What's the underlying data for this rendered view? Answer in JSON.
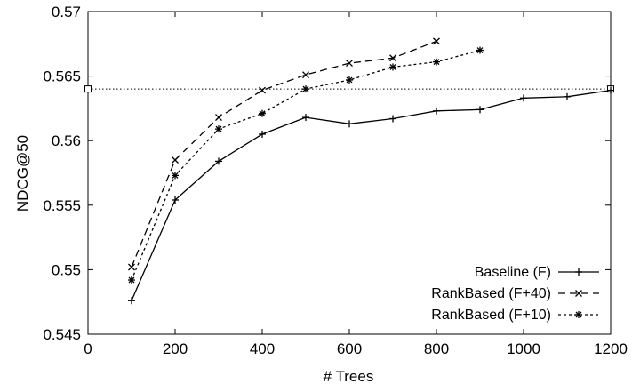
{
  "chart_data": {
    "type": "line",
    "title": "",
    "xlabel": "# Trees",
    "ylabel": "NDCG@50",
    "xlim": [
      0,
      1200
    ],
    "ylim": [
      0.545,
      0.57
    ],
    "xticks": [
      0,
      200,
      400,
      600,
      800,
      1000,
      1200
    ],
    "yticks": [
      0.545,
      0.55,
      0.555,
      0.56,
      0.565,
      0.57
    ],
    "xtick_labels": [
      "0",
      "200",
      "400",
      "600",
      "800",
      "1000",
      "1200"
    ],
    "ytick_labels": [
      "0.545",
      "0.55",
      "0.555",
      "0.56",
      "0.565",
      "0.57"
    ],
    "grid": false,
    "legend_position": "bottom-right",
    "reference_line": {
      "y": 0.564,
      "x_range": [
        0,
        1200
      ],
      "style": "dotted",
      "marker": "square"
    },
    "series": [
      {
        "name": "Baseline (F)",
        "style": "solid",
        "marker": "plus",
        "color": "#000000",
        "x": [
          100,
          200,
          300,
          400,
          500,
          600,
          700,
          800,
          900,
          1000,
          1100,
          1200
        ],
        "values": [
          0.5476,
          0.5554,
          0.5584,
          0.5605,
          0.5618,
          0.5613,
          0.5617,
          0.5623,
          0.5624,
          0.5633,
          0.5634,
          0.5639
        ]
      },
      {
        "name": "RankBased (F+40)",
        "style": "dashed",
        "marker": "x",
        "color": "#000000",
        "x": [
          100,
          200,
          300,
          400,
          500,
          600,
          700,
          800
        ],
        "values": [
          0.5502,
          0.5585,
          0.5618,
          0.5639,
          0.5651,
          0.566,
          0.5664,
          0.5677
        ]
      },
      {
        "name": "RankBased (F+10)",
        "style": "dotted",
        "marker": "star",
        "color": "#000000",
        "x": [
          100,
          200,
          300,
          400,
          500,
          600,
          700,
          800,
          900
        ],
        "values": [
          0.5492,
          0.5573,
          0.5609,
          0.5621,
          0.564,
          0.5647,
          0.5657,
          0.5661,
          0.567
        ]
      }
    ]
  }
}
